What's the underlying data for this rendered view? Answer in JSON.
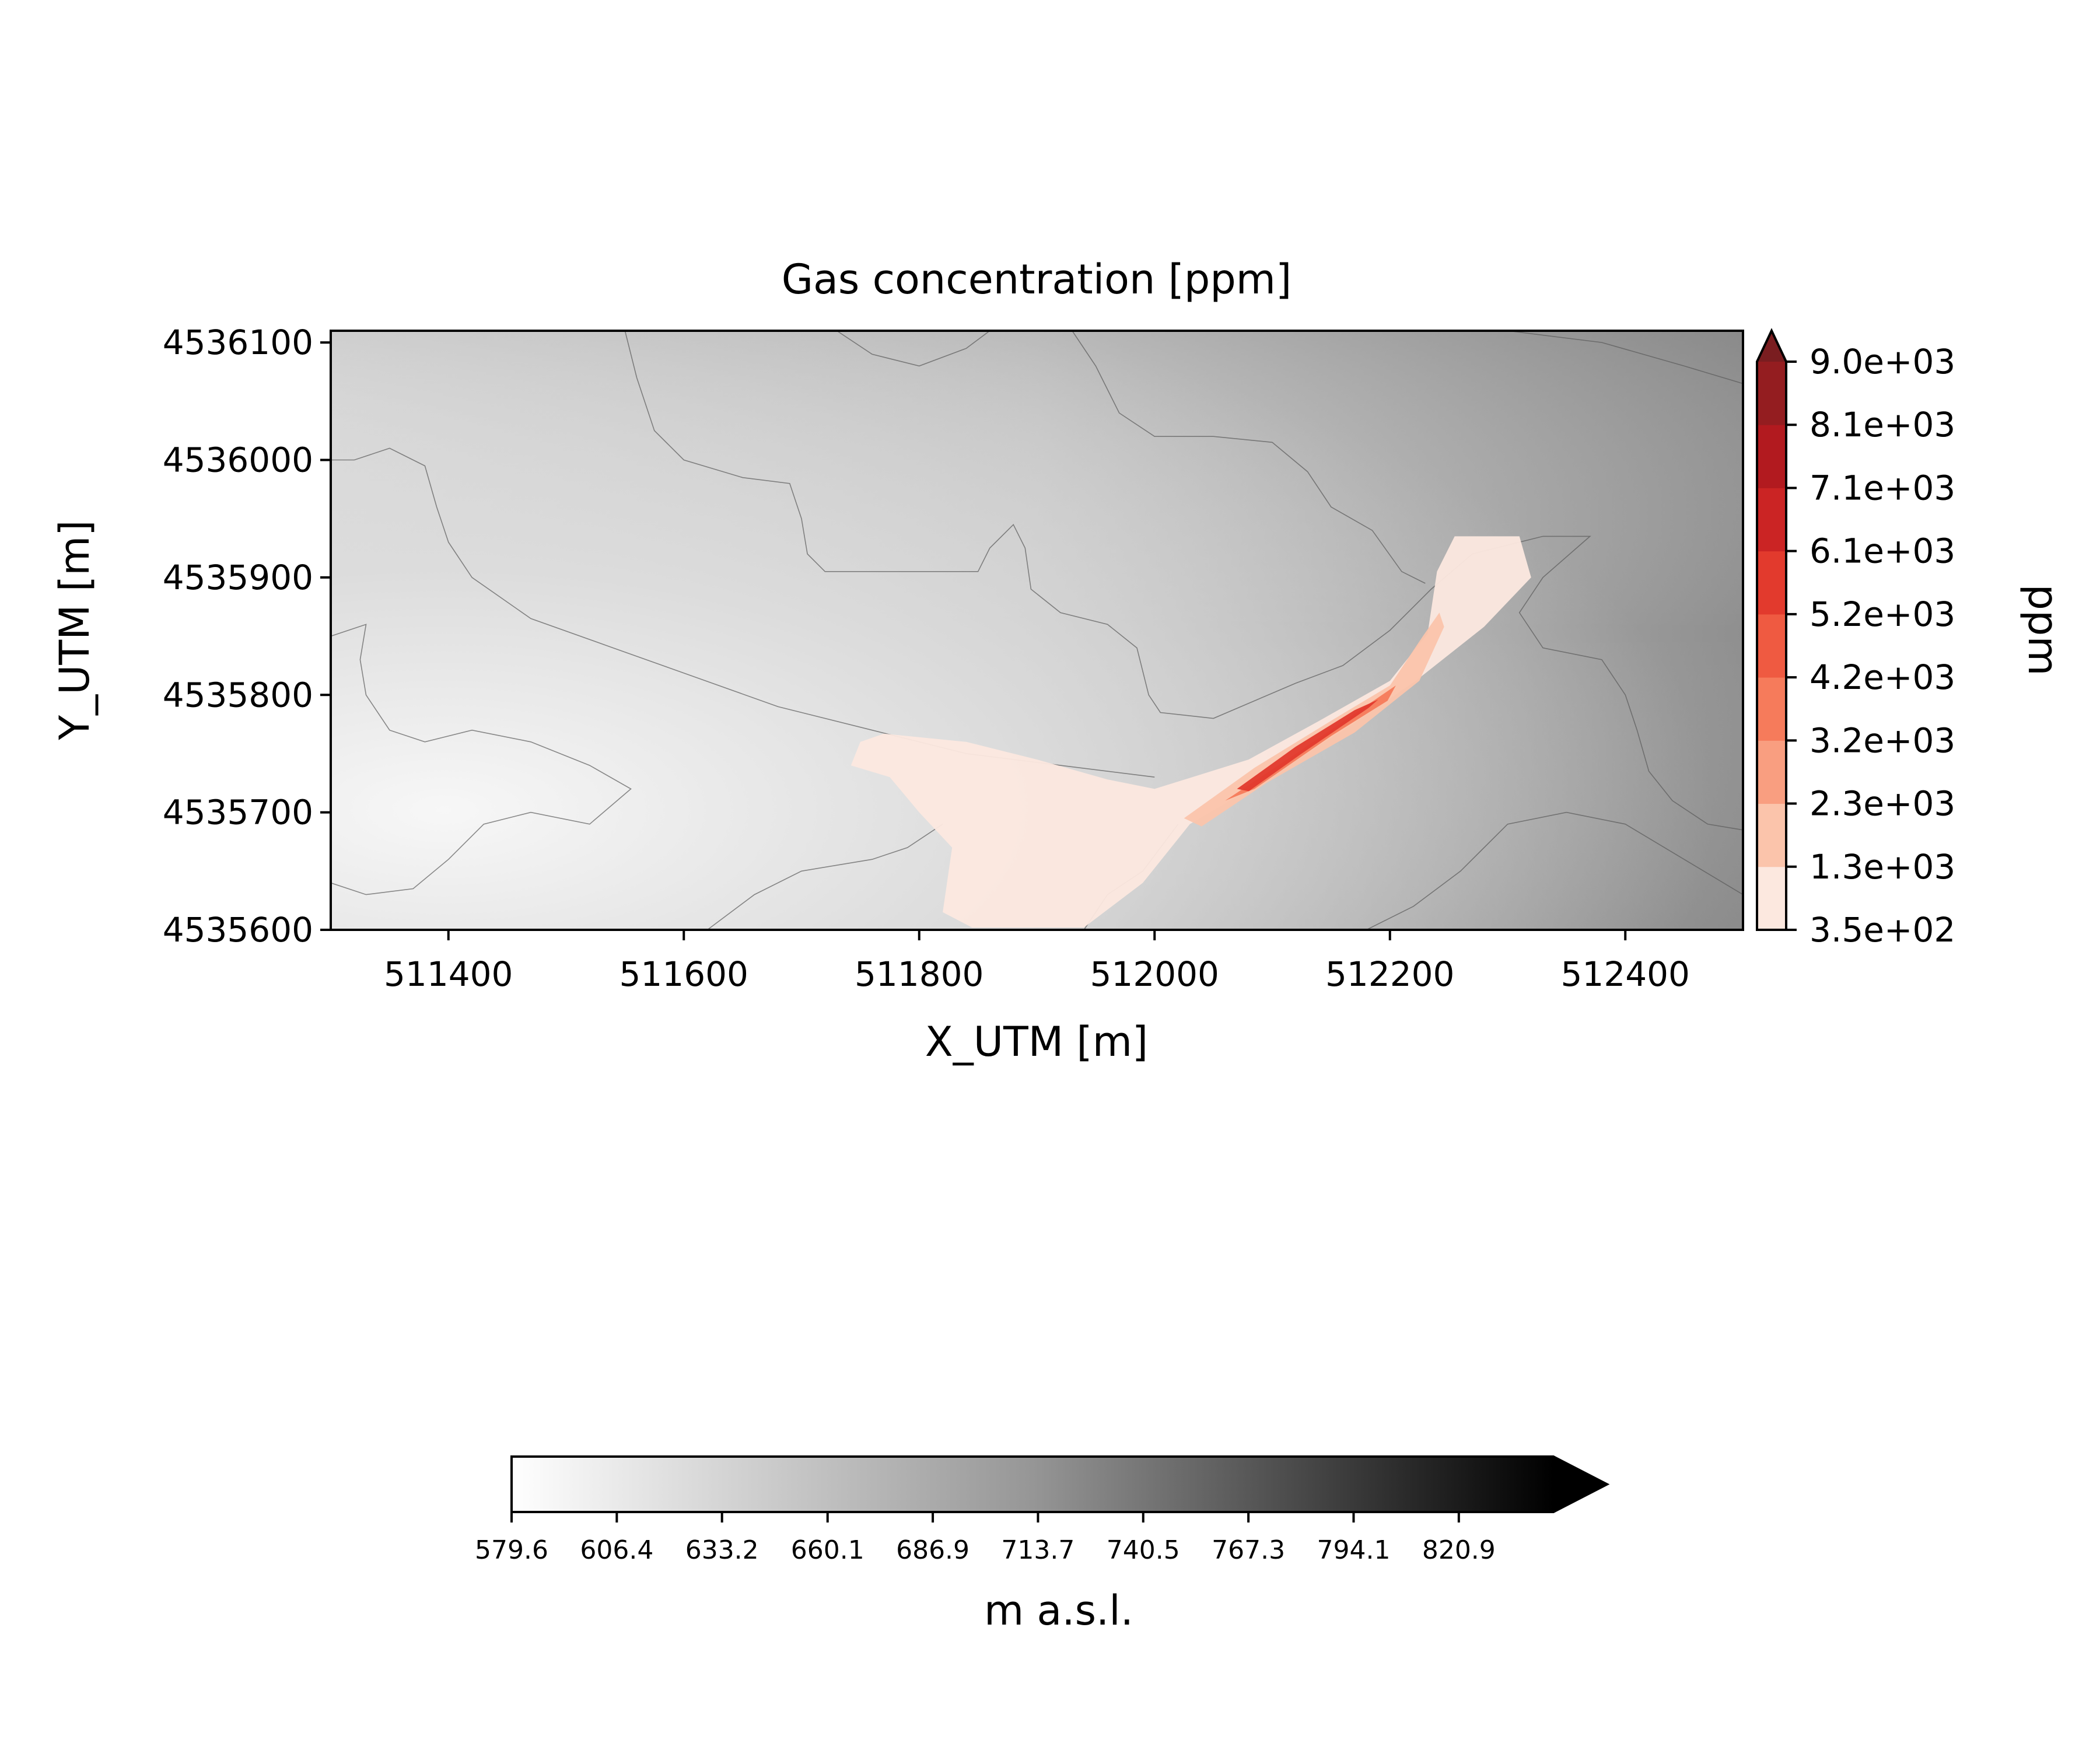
{
  "chart_data": {
    "type": "heatmap",
    "title": "Gas concentration [ppm]",
    "xlabel": "X_UTM [m]",
    "ylabel": "Y_UTM [m]",
    "xlim": [
      511300,
      512500
    ],
    "ylim": [
      4535600,
      4536110
    ],
    "x_ticks": [
      511400,
      511600,
      511800,
      512000,
      512200,
      512400
    ],
    "y_ticks": [
      4535600,
      4535700,
      4535800,
      4535900,
      4536000,
      4536100
    ],
    "x_tick_labels": [
      "511400",
      "511600",
      "511800",
      "512000",
      "512200",
      "512400"
    ],
    "y_tick_labels": [
      "4535600",
      "4535700",
      "4535800",
      "4535900",
      "4536000",
      "4536100"
    ],
    "gas_colorbar": {
      "label": "ppm",
      "levels": [
        350,
        1300,
        2300,
        3200,
        4200,
        5200,
        6100,
        7100,
        8100,
        9000
      ],
      "tick_labels": [
        "3.5e+02",
        "1.3e+03",
        "2.3e+03",
        "3.2e+03",
        "4.2e+03",
        "5.2e+03",
        "6.1e+03",
        "7.1e+03",
        "8.1e+03",
        "9.0e+03"
      ],
      "colors": [
        "#fce8df",
        "#fbc4ab",
        "#f99e80",
        "#f67b5b",
        "#ef5a41",
        "#e23a2d",
        "#cb2424",
        "#b21a1f",
        "#941d20"
      ],
      "extend": "max",
      "extend_color": "#7a1d20"
    },
    "elevation_colorbar": {
      "label": "m a.s.l.",
      "ticks": [
        579.6,
        606.4,
        633.2,
        660.1,
        686.9,
        713.7,
        740.5,
        767.3,
        794.1,
        820.9
      ],
      "tick_labels": [
        "579.6",
        "606.4",
        "633.2",
        "660.1",
        "686.9",
        "713.7",
        "740.5",
        "767.3",
        "794.1",
        "820.9"
      ],
      "range": [
        579.6,
        845.0
      ],
      "colormap": "Greys",
      "extend": "max"
    },
    "plume": {
      "outer": [
        [
          511770,
          4535767
        ],
        [
          511840,
          4535760
        ],
        [
          511900,
          4535745
        ],
        [
          511960,
          4535728
        ],
        [
          512000,
          4535720
        ],
        [
          512080,
          4535745
        ],
        [
          512140,
          4535778
        ],
        [
          512200,
          4535812
        ],
        [
          512232,
          4535852
        ],
        [
          512240,
          4535905
        ],
        [
          512255,
          4535935
        ],
        [
          512310,
          4535935
        ],
        [
          512320,
          4535900
        ],
        [
          512280,
          4535858
        ],
        [
          512222,
          4535812
        ],
        [
          512168,
          4535775
        ],
        [
          512090,
          4535725
        ],
        [
          512030,
          4535690
        ],
        [
          511990,
          4535640
        ],
        [
          511940,
          4535602
        ],
        [
          511845,
          4535602
        ],
        [
          511820,
          4535615
        ],
        [
          511828,
          4535670
        ],
        [
          511800,
          4535700
        ],
        [
          511775,
          4535730
        ],
        [
          511742,
          4535740
        ],
        [
          511750,
          4535760
        ]
      ],
      "band2": [
        [
          512025,
          4535695
        ],
        [
          512085,
          4535738
        ],
        [
          512150,
          4535778
        ],
        [
          512200,
          4535808
        ],
        [
          512228,
          4535850
        ],
        [
          512242,
          4535870
        ],
        [
          512246,
          4535858
        ],
        [
          512225,
          4535812
        ],
        [
          512170,
          4535768
        ],
        [
          512095,
          4535725
        ],
        [
          512040,
          4535688
        ]
      ],
      "band3": [
        [
          512060,
          4535710
        ],
        [
          512120,
          4535750
        ],
        [
          512170,
          4535784
        ],
        [
          512205,
          4535808
        ],
        [
          512198,
          4535795
        ],
        [
          512150,
          4535765
        ],
        [
          512085,
          4535720
        ]
      ],
      "band4": [
        [
          512070,
          4535720
        ],
        [
          512120,
          4535756
        ],
        [
          512170,
          4535787
        ],
        [
          512190,
          4535796
        ],
        [
          512182,
          4535789
        ],
        [
          512125,
          4535750
        ],
        [
          512080,
          4535718
        ]
      ]
    },
    "contours": [
      [
        [
          511300,
          4536000
        ],
        [
          511320,
          4536000
        ],
        [
          511350,
          4536010
        ],
        [
          511380,
          4535995
        ],
        [
          511390,
          4535960
        ],
        [
          511400,
          4535930
        ],
        [
          511420,
          4535900
        ],
        [
          511470,
          4535865
        ],
        [
          511540,
          4535840
        ],
        [
          511610,
          4535815
        ],
        [
          511680,
          4535790
        ],
        [
          511760,
          4535770
        ],
        [
          511840,
          4535750
        ],
        [
          511920,
          4535740
        ],
        [
          512000,
          4535730
        ]
      ],
      [
        [
          511550,
          4536110
        ],
        [
          511560,
          4536070
        ],
        [
          511575,
          4536025
        ],
        [
          511600,
          4536000
        ],
        [
          511650,
          4535985
        ],
        [
          511690,
          4535980
        ],
        [
          511700,
          4535950
        ],
        [
          511705,
          4535920
        ],
        [
          511720,
          4535905
        ],
        [
          511790,
          4535905
        ],
        [
          511850,
          4535905
        ],
        [
          511860,
          4535925
        ],
        [
          511880,
          4535945
        ],
        [
          511890,
          4535925
        ],
        [
          511895,
          4535890
        ],
        [
          511920,
          4535870
        ],
        [
          511960,
          4535860
        ],
        [
          511985,
          4535840
        ],
        [
          511995,
          4535800
        ],
        [
          512005,
          4535785
        ],
        [
          512050,
          4535780
        ],
        [
          512120,
          4535810
        ],
        [
          512160,
          4535825
        ],
        [
          512200,
          4535855
        ],
        [
          512235,
          4535890
        ],
        [
          512270,
          4535920
        ],
        [
          512330,
          4535935
        ],
        [
          512370,
          4535935
        ],
        [
          512330,
          4535900
        ],
        [
          512310,
          4535870
        ],
        [
          512330,
          4535840
        ],
        [
          512380,
          4535830
        ],
        [
          512400,
          4535800
        ],
        [
          512410,
          4535770
        ],
        [
          512420,
          4535735
        ],
        [
          512440,
          4535710
        ],
        [
          512470,
          4535690
        ],
        [
          512500,
          4535685
        ]
      ],
      [
        [
          511730,
          4536110
        ],
        [
          511760,
          4536090
        ],
        [
          511800,
          4536080
        ],
        [
          511840,
          4536095
        ],
        [
          511860,
          4536110
        ]
      ],
      [
        [
          511930,
          4536110
        ],
        [
          511950,
          4536080
        ],
        [
          511970,
          4536040
        ],
        [
          512000,
          4536020
        ],
        [
          512050,
          4536020
        ],
        [
          512100,
          4536015
        ],
        [
          512130,
          4535990
        ],
        [
          512150,
          4535960
        ],
        [
          512185,
          4535940
        ],
        [
          512210,
          4535905
        ],
        [
          512230,
          4535895
        ]
      ],
      [
        [
          512300,
          4536110
        ],
        [
          512380,
          4536100
        ],
        [
          512450,
          4536080
        ],
        [
          512500,
          4536065
        ]
      ],
      [
        [
          511300,
          4535640
        ],
        [
          511330,
          4535630
        ],
        [
          511370,
          4535635
        ],
        [
          511400,
          4535660
        ],
        [
          511430,
          4535690
        ],
        [
          511470,
          4535700
        ],
        [
          511520,
          4535690
        ],
        [
          511555,
          4535720
        ],
        [
          511520,
          4535740
        ],
        [
          511470,
          4535760
        ],
        [
          511420,
          4535770
        ],
        [
          511380,
          4535760
        ],
        [
          511350,
          4535770
        ],
        [
          511330,
          4535800
        ],
        [
          511325,
          4535830
        ],
        [
          511330,
          4535860
        ],
        [
          511300,
          4535850
        ]
      ],
      [
        [
          511620,
          4535600
        ],
        [
          511660,
          4535630
        ],
        [
          511700,
          4535650
        ],
        [
          511760,
          4535660
        ],
        [
          511790,
          4535670
        ],
        [
          511820,
          4535690
        ]
      ],
      [
        [
          511940,
          4535600
        ],
        [
          511960,
          4535630
        ],
        [
          511990,
          4535650
        ],
        [
          512020,
          4535690
        ]
      ],
      [
        [
          512180,
          4535600
        ],
        [
          512220,
          4535620
        ],
        [
          512260,
          4535650
        ],
        [
          512300,
          4535690
        ],
        [
          512350,
          4535700
        ],
        [
          512400,
          4535690
        ],
        [
          512450,
          4535660
        ],
        [
          512500,
          4535630
        ]
      ]
    ]
  }
}
